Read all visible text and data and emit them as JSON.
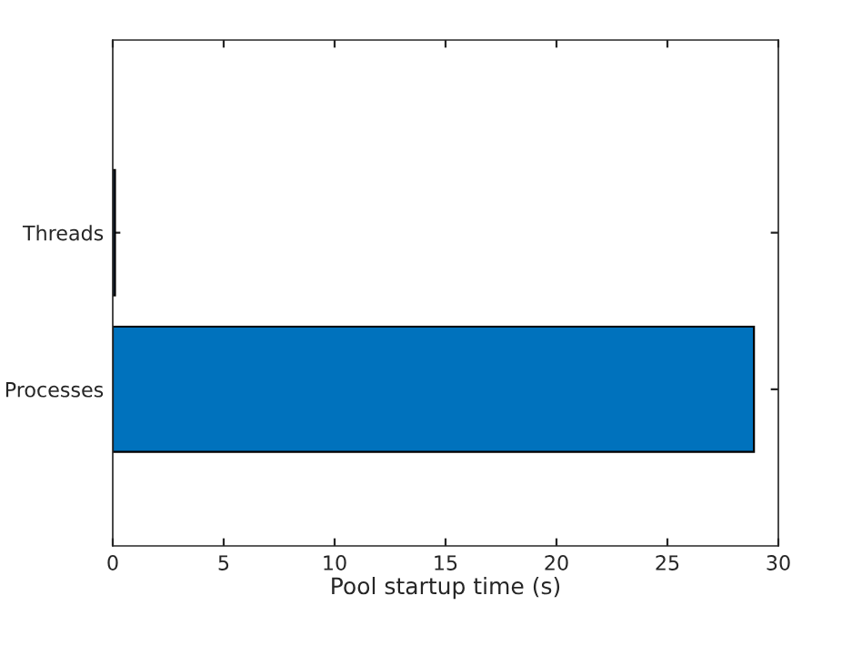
{
  "chart_data": {
    "type": "bar",
    "orientation": "horizontal",
    "xlabel": "Pool startup time (s)",
    "categories": [
      "Threads",
      "Processes"
    ],
    "values": [
      0.1,
      28.9
    ],
    "color": "#0072bd",
    "xlim": [
      0,
      30
    ],
    "xticks": [
      0,
      5,
      10,
      15,
      20,
      25,
      30
    ],
    "grid": false,
    "legend": false
  }
}
